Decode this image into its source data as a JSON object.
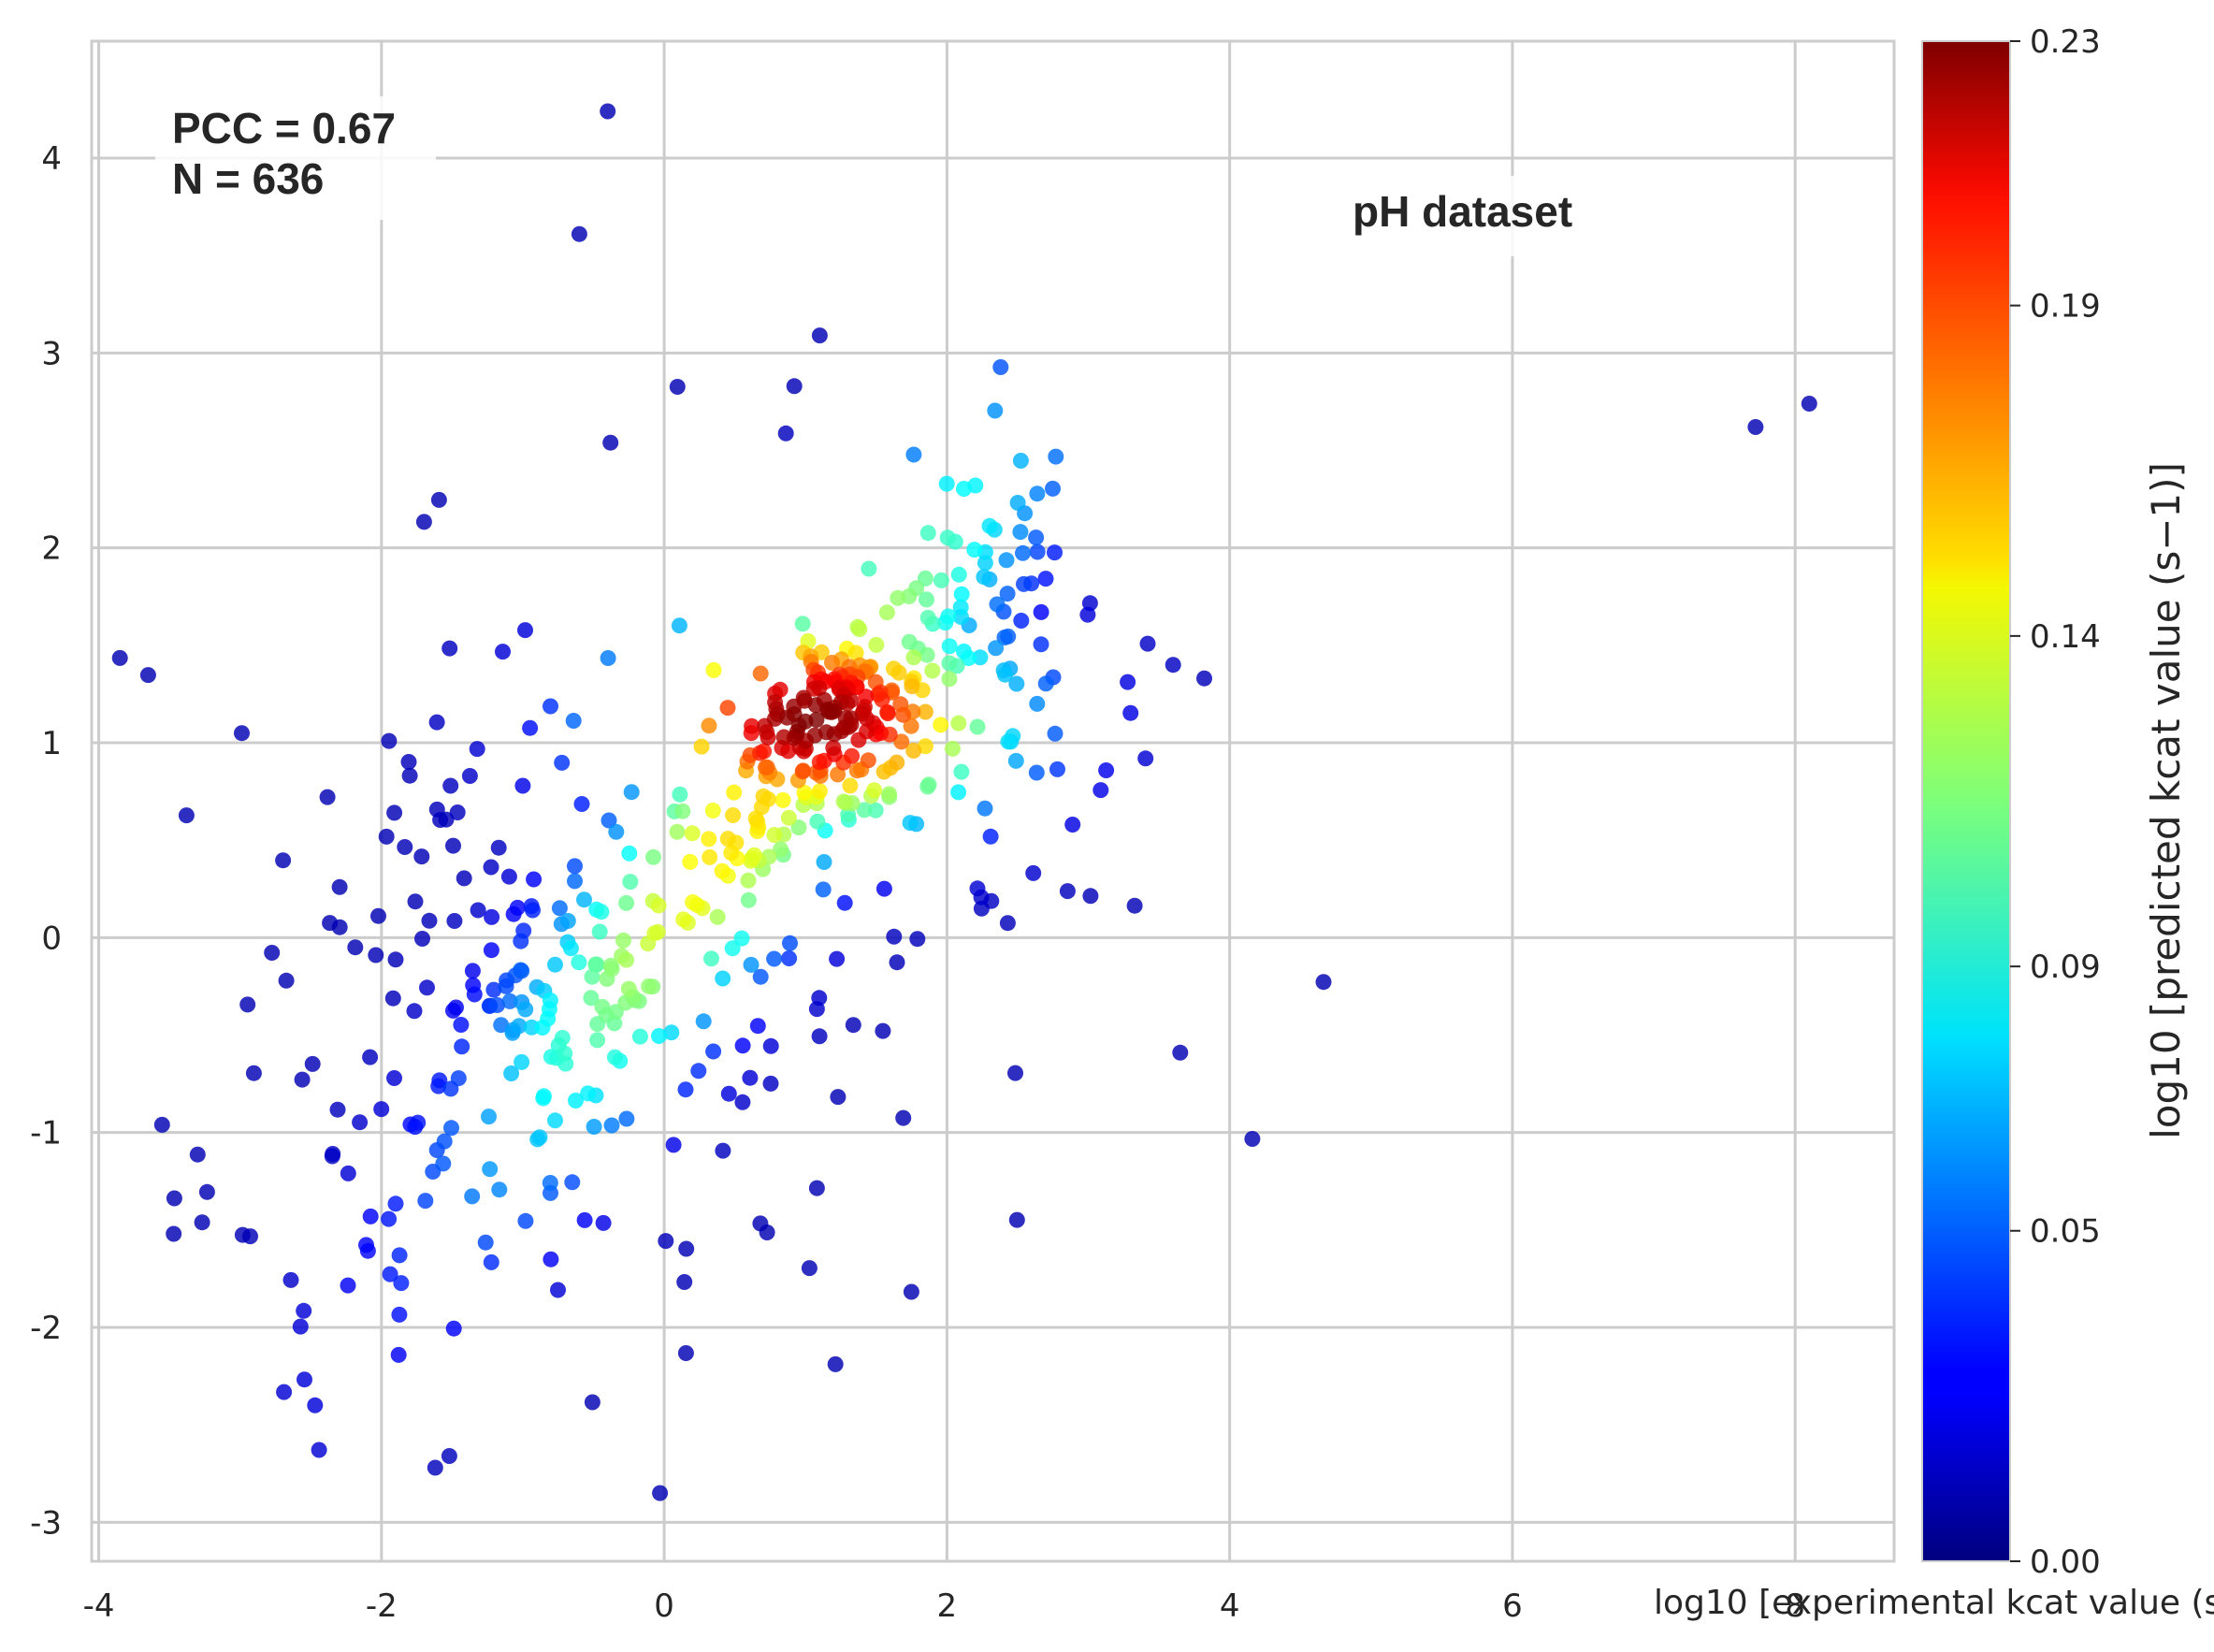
{
  "chart_data": {
    "type": "scatter",
    "title": "",
    "xlabel": "log10 [experimental kcat value (s",
    "ylabel": "",
    "colorbar_label": "log10 [predicted kcat value (s−1)]",
    "xlim": [
      -4.05,
      8.7
    ],
    "ylim": [
      -3.2,
      4.6
    ],
    "xticks": [
      "-4",
      "-2",
      "0",
      "2",
      "4",
      "6",
      "8"
    ],
    "yticks": [
      "-3",
      "-2",
      "-1",
      "0",
      "1",
      "2",
      "3",
      "4"
    ],
    "colorbar_ticks": [
      "0.00",
      "0.05",
      "0.09",
      "0.14",
      "0.19",
      "0.23"
    ],
    "color_range": [
      0.0,
      0.23
    ],
    "colormap": "jet",
    "grid": true,
    "annotations": {
      "pcc": "PCC = 0.67",
      "n": "N = 636",
      "dataset": "pH dataset"
    },
    "n_points": 636,
    "notable_points": [
      {
        "x": -0.4,
        "y": 4.24
      },
      {
        "x": -0.6,
        "y": 3.61
      },
      {
        "x": 1.1,
        "y": 3.09
      },
      {
        "x": 0.92,
        "y": 2.83
      },
      {
        "x": -0.38,
        "y": 2.54
      },
      {
        "x": 7.72,
        "y": 2.62
      },
      {
        "x": 8.1,
        "y": 2.74
      },
      {
        "x": -3.47,
        "y": -1.52
      },
      {
        "x": -2.47,
        "y": -2.4
      },
      {
        "x": -1.62,
        "y": -2.72
      },
      {
        "x": -1.52,
        "y": -2.66
      },
      {
        "x": -0.03,
        "y": -2.85
      },
      {
        "x": 3.65,
        "y": -0.59
      },
      {
        "x": 3.82,
        "y": 1.33
      },
      {
        "x": 3.6,
        "y": 1.4
      }
    ]
  }
}
